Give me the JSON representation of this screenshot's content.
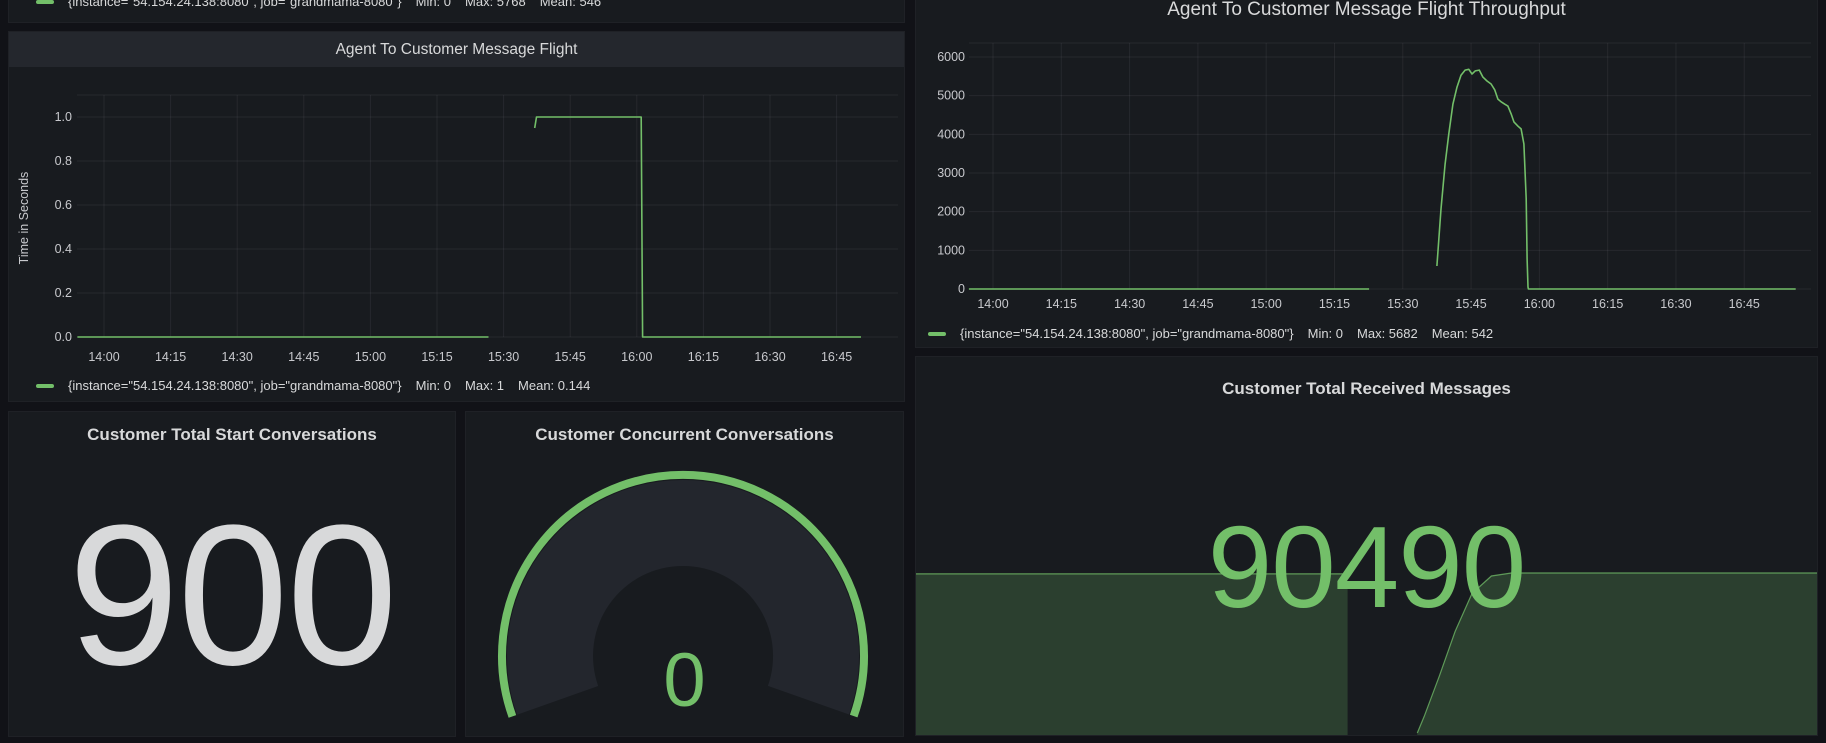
{
  "page": {
    "bg": "#111217",
    "panel_bg": "#181b1f",
    "accent_green": "#73BF69",
    "text_primary": "#d8d9da",
    "tick_color": "#c8c9cd"
  },
  "panels": {
    "top_partial": {},
    "flight": {
      "title": "Agent To Customer Message Flight",
      "ylabel": "Time in Seconds"
    },
    "throughput": {
      "title": "Agent To Customer Message Flight Throughput"
    },
    "start_conversations": {
      "title": "Customer Total Start Conversations",
      "value": "900",
      "value_color": "#D8D9DA"
    },
    "concurrent": {
      "title": "Customer Concurrent Conversations",
      "value": "0",
      "arc_color": "#73BF69",
      "track_color": "#23262d"
    },
    "received": {
      "title": "Customer Total Received Messages",
      "value": "90490",
      "value_color": "#73BF69"
    }
  },
  "legends": {
    "top": {
      "swatch_color": "#73BF69",
      "series_label": "{instance=\"54.154.24.138:8080\", job=\"grandmama-8080\"}",
      "min": "Min: 0",
      "max": "Max: 5768",
      "mean": "Mean: 546"
    },
    "flight": {
      "swatch_color": "#73BF69",
      "series_label": "{instance=\"54.154.24.138:8080\", job=\"grandmama-8080\"}",
      "min": "Min: 0",
      "max": "Max: 1",
      "mean": "Mean: 0.144"
    },
    "throughput": {
      "swatch_color": "#73BF69",
      "series_label": "{instance=\"54.154.24.138:8080\", job=\"grandmama-8080\"}",
      "min": "Min: 0",
      "max": "Max: 5682",
      "mean": "Mean: 542"
    }
  },
  "chart_data": [
    {
      "id": "flight",
      "type": "line",
      "title": "Agent To Customer Message Flight",
      "xlabel": "",
      "ylabel": "Time in Seconds",
      "x_ticks": [
        "14:00",
        "14:15",
        "14:30",
        "14:45",
        "15:00",
        "15:15",
        "15:30",
        "15:45",
        "16:00",
        "16:15",
        "16:30",
        "16:45"
      ],
      "y_ticks": [
        "0.0",
        "0.2",
        "0.4",
        "0.6",
        "0.8",
        "1.0"
      ],
      "y_tick_values": [
        0,
        0.2,
        0.4,
        0.6,
        0.8,
        1.0
      ],
      "ylim": [
        0,
        1.1
      ],
      "grid": true,
      "legend_position": "bottom",
      "series": [
        {
          "name": "{instance=\"54.154.24.138:8080\", job=\"grandmama-8080\"}",
          "color": "#73BF69",
          "stats": {
            "min": 0,
            "max": 1,
            "mean": 0.144
          },
          "segments_minutes_from_1400_value": [
            [
              [
                -6,
                0
              ],
              [
                86.6,
                0
              ]
            ],
            [
              [
                97,
                0.95
              ],
              [
                97.4,
                1
              ],
              [
                121,
                1
              ],
              [
                121.3,
                0
              ],
              [
                170.5,
                0
              ]
            ]
          ]
        }
      ]
    },
    {
      "id": "throughput",
      "type": "line",
      "title": "Agent To Customer Message Flight Throughput",
      "xlabel": "",
      "ylabel": "",
      "x_ticks": [
        "14:00",
        "14:15",
        "14:30",
        "14:45",
        "15:00",
        "15:15",
        "15:30",
        "15:45",
        "16:00",
        "16:15",
        "16:30",
        "16:45"
      ],
      "y_ticks": [
        "0",
        "1000",
        "2000",
        "3000",
        "4000",
        "5000",
        "6000"
      ],
      "y_tick_values": [
        0,
        1000,
        2000,
        3000,
        4000,
        5000,
        6000
      ],
      "ylim": [
        0,
        6400
      ],
      "grid": true,
      "legend_position": "bottom",
      "series": [
        {
          "name": "{instance=\"54.154.24.138:8080\", job=\"grandmama-8080\"}",
          "color": "#73BF69",
          "stats": {
            "min": 0,
            "max": 5682,
            "mean": 542
          },
          "segments_minutes_from_1400_value": [
            [
              [
                -5.3,
                0
              ],
              [
                82.6,
                0
              ]
            ],
            [
              [
                97.5,
                595
              ],
              [
                98.4,
                2070
              ],
              [
                99.3,
                3230
              ],
              [
                100.1,
                4010
              ],
              [
                101,
                4780
              ],
              [
                101.9,
                5220
              ],
              [
                102.8,
                5530
              ],
              [
                103.7,
                5660
              ],
              [
                104.5,
                5682
              ],
              [
                105.2,
                5560
              ],
              [
                105.9,
                5640
              ],
              [
                106.8,
                5660
              ],
              [
                107.6,
                5480
              ],
              [
                108.5,
                5380
              ],
              [
                109.4,
                5300
              ],
              [
                110.2,
                5150
              ],
              [
                110.9,
                4910
              ],
              [
                111.6,
                4840
              ],
              [
                112.4,
                4780
              ],
              [
                113.1,
                4730
              ],
              [
                113.8,
                4530
              ],
              [
                114.4,
                4320
              ],
              [
                115.3,
                4210
              ],
              [
                116,
                4140
              ],
              [
                116.6,
                3750
              ],
              [
                117.1,
                2330
              ],
              [
                117.3,
                780
              ],
              [
                117.5,
                50
              ],
              [
                117.6,
                0
              ],
              [
                176.3,
                0
              ]
            ]
          ]
        }
      ]
    },
    {
      "id": "received_sparkline",
      "type": "area",
      "title": "Customer Total Received Messages",
      "current_value": 90490,
      "vmax": 90490,
      "time_range_minutes_from_1400": [
        -5,
        176
      ],
      "line_color": "rgba(115,191,105,0.75)",
      "fill_color": "rgba(115,191,105,0.22)",
      "segments_minutes_from_1400_value": [
        [
          [
            -5,
            90000
          ],
          [
            81.7,
            90000
          ]
        ],
        [
          [
            95.7,
            0
          ],
          [
            97.1,
            9400
          ],
          [
            100.1,
            32000
          ],
          [
            103.3,
            57400
          ],
          [
            106.7,
            78900
          ],
          [
            110.6,
            88800
          ],
          [
            114.6,
            90490
          ],
          [
            176,
            90490
          ]
        ]
      ]
    },
    {
      "id": "concurrent_gauge",
      "type": "gauge",
      "title": "Customer Concurrent Conversations",
      "value": 0
    }
  ]
}
